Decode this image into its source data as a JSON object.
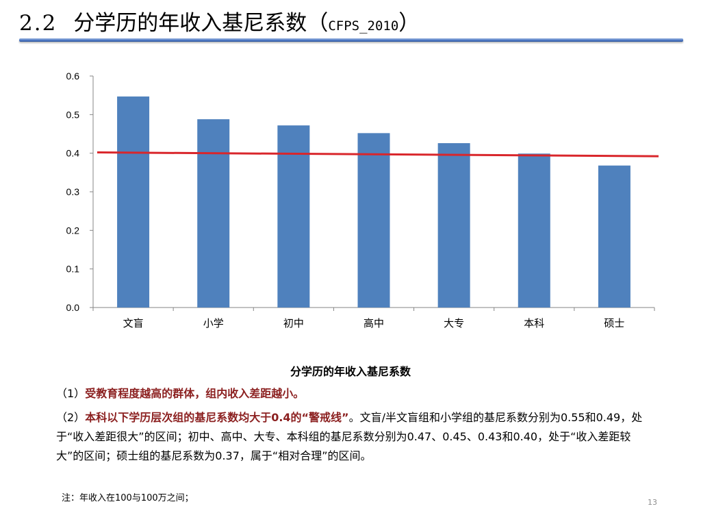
{
  "slide": {
    "title_number": "2.2",
    "title_text": "分学历的年收入基尼系数",
    "title_paren_open": "（",
    "title_source": "CFPS_2010",
    "title_paren_close": "）",
    "caption": "分学历的年收入基尼系数",
    "p1_prefix": "（1）",
    "p1_highlight": "受教育程度越高的群体，组内收入差距越小。",
    "p2_prefix": "（2）",
    "p2_highlight": "本科以下学历层次组的基尼系数均大于0.4的“警戒线”",
    "p2_text": "。文盲/半文盲组和小学组的基尼系数分别为0.55和0.49，处于“收入差距很大”的区间；初中、高中、大专、本科组的基尼系数分别为0.47、0.45、0.43和0.40，处于“收入差距较大”的区间；硕士组的基尼系数为0.37，属于“相对合理”的区间。",
    "note": "注：年收入在100与100万之间；",
    "page_number": "13"
  },
  "colors": {
    "bar": "#4f81bd",
    "trend_line": "#d9262b",
    "axis": "#868686",
    "title_rule": "#4a76c4",
    "highlight_text": "#8b1f1f"
  },
  "chart_data": {
    "type": "bar",
    "categories": [
      "文盲",
      "小学",
      "初中",
      "高中",
      "大专",
      "本科",
      "硕士"
    ],
    "values": [
      0.547,
      0.488,
      0.472,
      0.452,
      0.426,
      0.399,
      0.368
    ],
    "trend_line": {
      "start": 0.402,
      "end": 0.392
    },
    "ylim": [
      0,
      0.6
    ],
    "yticks": [
      "0.0",
      "0.1",
      "0.2",
      "0.3",
      "0.4",
      "0.5",
      "0.6"
    ],
    "grid": false,
    "legend": "none"
  }
}
